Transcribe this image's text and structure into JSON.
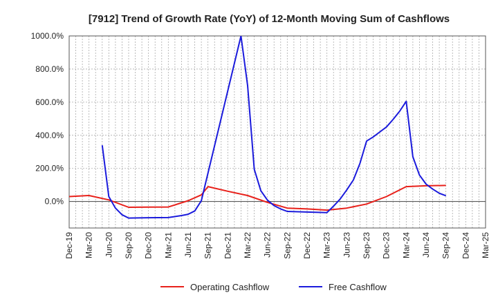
{
  "chart_data": {
    "type": "line",
    "title": "[7912]  Trend of Growth Rate (YoY) of 12-Month Moving Sum of Cashflows",
    "ylabel": "",
    "xlabel": "",
    "ylim": [
      -160,
      1000
    ],
    "y_ticks": [
      0,
      200,
      400,
      600,
      800,
      1000
    ],
    "y_tick_labels": [
      "0.0%",
      "200.0%",
      "400.0%",
      "600.0%",
      "800.0%",
      "1000.0%"
    ],
    "x_tick_labels": [
      "Dec-19",
      "Mar-20",
      "Jun-20",
      "Sep-20",
      "Dec-20",
      "Mar-21",
      "Jun-21",
      "Sep-21",
      "Dec-21",
      "Mar-22",
      "Jun-22",
      "Sep-22",
      "Dec-22",
      "Mar-23",
      "Jun-23",
      "Sep-23",
      "Dec-23",
      "Mar-24",
      "Jun-24",
      "Sep-24",
      "Dec-24",
      "Mar-25"
    ],
    "x_range": [
      "2019-12",
      "2025-03"
    ],
    "grid": true,
    "legend_position": "bottom",
    "series": [
      {
        "name": "Operating Cashflow",
        "color": "#e8201a",
        "points": [
          [
            "2019-12",
            30
          ],
          [
            "2020-03",
            36
          ],
          [
            "2020-06",
            10
          ],
          [
            "2020-09",
            -35
          ],
          [
            "2020-12",
            -34
          ],
          [
            "2021-03",
            -33
          ],
          [
            "2021-06",
            5
          ],
          [
            "2021-08",
            40
          ],
          [
            "2021-09",
            90
          ],
          [
            "2021-12",
            62
          ],
          [
            "2022-03",
            36
          ],
          [
            "2022-06",
            -5
          ],
          [
            "2022-09",
            -40
          ],
          [
            "2022-12",
            -45
          ],
          [
            "2023-03",
            -52
          ],
          [
            "2023-06",
            -40
          ],
          [
            "2023-09",
            -15
          ],
          [
            "2023-12",
            30
          ],
          [
            "2024-03",
            90
          ],
          [
            "2024-06",
            95
          ],
          [
            "2024-09",
            97
          ]
        ]
      },
      {
        "name": "Free Cashflow",
        "color": "#1a1adc",
        "points": [
          [
            "2020-05",
            340
          ],
          [
            "2020-06",
            30
          ],
          [
            "2020-07",
            -40
          ],
          [
            "2020-08",
            -80
          ],
          [
            "2020-09",
            -100
          ],
          [
            "2020-12",
            -98
          ],
          [
            "2021-03",
            -97
          ],
          [
            "2021-05",
            -85
          ],
          [
            "2021-06",
            -77
          ],
          [
            "2021-07",
            -57
          ],
          [
            "2021-08",
            5
          ],
          [
            "2022-02",
            1000
          ],
          [
            "2022-03",
            700
          ],
          [
            "2022-04",
            195
          ],
          [
            "2022-05",
            65
          ],
          [
            "2022-06",
            8
          ],
          [
            "2022-07",
            -25
          ],
          [
            "2022-08",
            -45
          ],
          [
            "2022-09",
            -60
          ],
          [
            "2023-03",
            -67
          ],
          [
            "2023-04",
            -28
          ],
          [
            "2023-05",
            15
          ],
          [
            "2023-06",
            70
          ],
          [
            "2023-07",
            130
          ],
          [
            "2023-08",
            230
          ],
          [
            "2023-09",
            365
          ],
          [
            "2023-10",
            390
          ],
          [
            "2023-11",
            420
          ],
          [
            "2023-12",
            450
          ],
          [
            "2024-01",
            495
          ],
          [
            "2024-02",
            545
          ],
          [
            "2024-03",
            605
          ],
          [
            "2024-04",
            270
          ],
          [
            "2024-05",
            160
          ],
          [
            "2024-06",
            105
          ],
          [
            "2024-07",
            75
          ],
          [
            "2024-08",
            50
          ],
          [
            "2024-09",
            35
          ]
        ]
      }
    ]
  }
}
